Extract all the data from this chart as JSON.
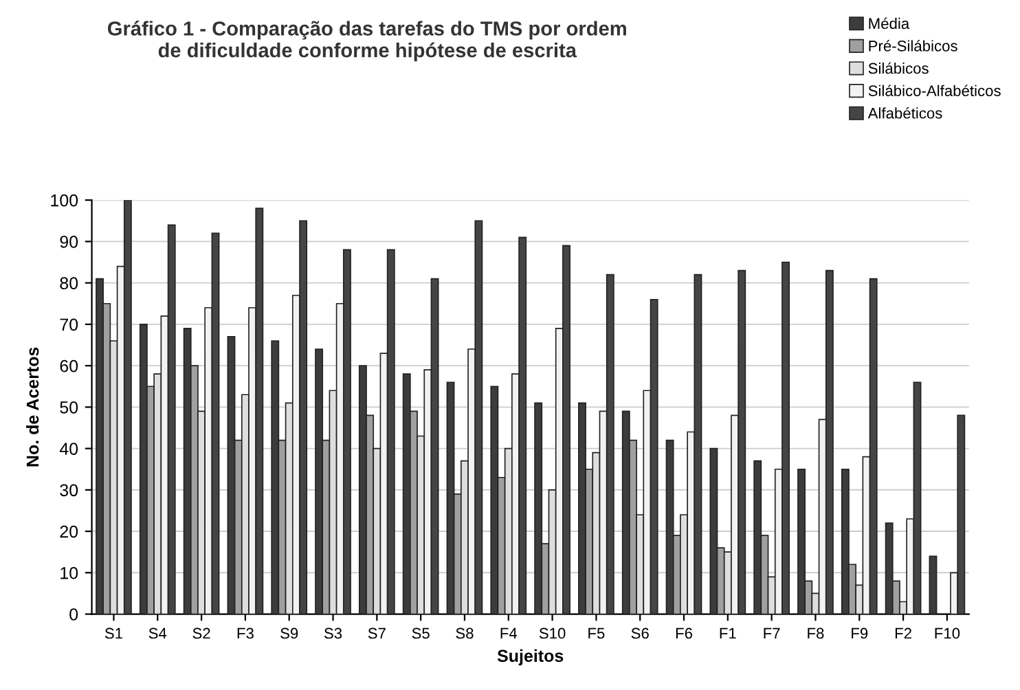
{
  "chart_data": {
    "type": "bar",
    "title": "Gráfico 1 - Comparação das tarefas do TMS por ordem\nde dificuldade conforme hipótese de escrita",
    "xlabel": "Sujeitos",
    "ylabel": "No. de Acertos",
    "categories": [
      "S1",
      "S4",
      "S2",
      "F3",
      "S9",
      "S3",
      "S7",
      "S5",
      "S8",
      "F4",
      "S10",
      "F5",
      "S6",
      "F6",
      "F1",
      "F7",
      "F8",
      "F9",
      "F2",
      "F10"
    ],
    "series": [
      {
        "name": "Média",
        "color": "#3c3c3c",
        "values": [
          81,
          70,
          69,
          67,
          66,
          64,
          60,
          58,
          56,
          55,
          51,
          51,
          49,
          42,
          40,
          37,
          35,
          35,
          22,
          14
        ]
      },
      {
        "name": "Pré-Silábicos",
        "color": "#a0a0a0",
        "values": [
          75,
          55,
          60,
          42,
          42,
          42,
          48,
          49,
          29,
          33,
          17,
          35,
          42,
          19,
          16,
          19,
          8,
          12,
          8,
          null
        ]
      },
      {
        "name": "Silábicos",
        "color": "#dedede",
        "values": [
          66,
          58,
          49,
          53,
          51,
          54,
          40,
          43,
          37,
          40,
          30,
          39,
          24,
          24,
          15,
          9,
          5,
          7,
          3,
          null
        ]
      },
      {
        "name": "Silábico-Alfabéticos",
        "color": "#f2f2f2",
        "values": [
          84,
          72,
          74,
          74,
          77,
          75,
          63,
          59,
          64,
          58,
          69,
          49,
          54,
          44,
          48,
          35,
          47,
          38,
          23,
          10
        ]
      },
      {
        "name": "Alfabéticos",
        "color": "#454545",
        "values": [
          100,
          94,
          92,
          98,
          95,
          88,
          88,
          81,
          95,
          91,
          89,
          82,
          76,
          82,
          83,
          85,
          83,
          81,
          56,
          48
        ]
      }
    ],
    "ylim": [
      0,
      100
    ],
    "yticks": [
      0,
      10,
      20,
      30,
      40,
      50,
      60,
      70,
      80,
      90,
      100
    ],
    "grid": "y",
    "legend": "top right"
  }
}
